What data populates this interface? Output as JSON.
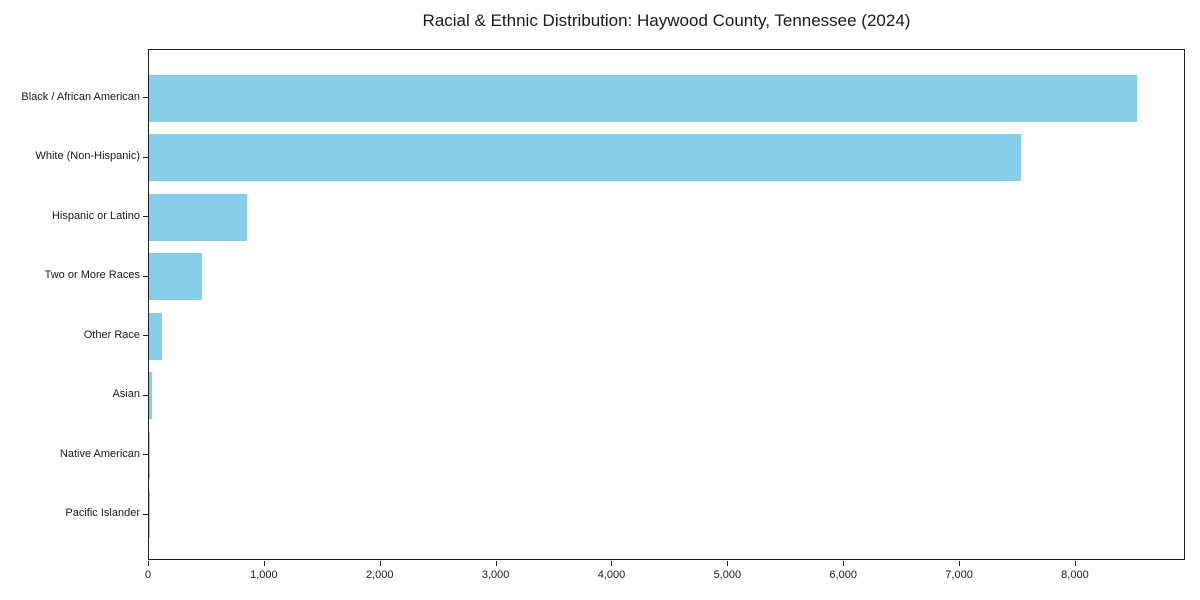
{
  "title": "Racial & Ethnic Distribution: Haywood County, Tennessee (2024)",
  "colors": {
    "bar": "#87CEEB",
    "axis": "#1f1f1f",
    "text": "#1a1a1a",
    "background": "#ffffff"
  },
  "chart_data": {
    "type": "bar",
    "orientation": "horizontal",
    "title": "Racial & Ethnic Distribution: Haywood County, Tennessee (2024)",
    "xlabel": "",
    "ylabel": "",
    "categories": [
      "Black / African American",
      "White (Non-Hispanic)",
      "Hispanic or Latino",
      "Two or More Races",
      "Other Race",
      "Asian",
      "Native American",
      "Pacific Islander"
    ],
    "values": [
      8530,
      7530,
      845,
      455,
      110,
      30,
      12,
      5
    ],
    "bar_color": "#87CEEB",
    "xlim": [
      0,
      8950
    ],
    "x_ticks": [
      0,
      1000,
      2000,
      3000,
      4000,
      5000,
      6000,
      7000,
      8000
    ],
    "x_tick_labels": [
      "0",
      "1,000",
      "2,000",
      "3,000",
      "4,000",
      "5,000",
      "6,000",
      "7,000",
      "8,000"
    ],
    "grid": false,
    "legend": false
  }
}
